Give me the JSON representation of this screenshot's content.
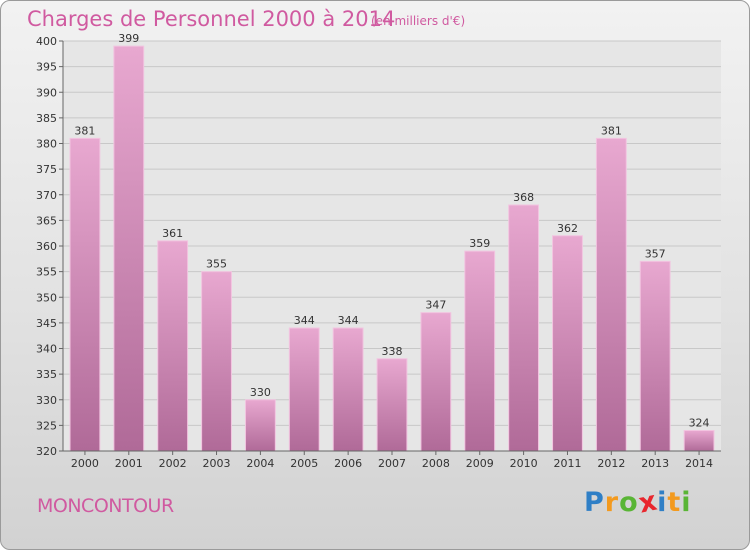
{
  "chart_data": {
    "type": "bar",
    "title": "Charges de Personnel 2000 à 2014",
    "subtitle": "(en milliers d'€)",
    "categories": [
      "2000",
      "2001",
      "2002",
      "2003",
      "2004",
      "2005",
      "2006",
      "2007",
      "2008",
      "2009",
      "2010",
      "2011",
      "2012",
      "2013",
      "2014"
    ],
    "values": [
      381,
      399,
      361,
      355,
      330,
      344,
      344,
      338,
      347,
      359,
      368,
      362,
      381,
      357,
      324
    ],
    "ylim": [
      320,
      400
    ],
    "yticks": [
      320,
      325,
      330,
      335,
      340,
      345,
      350,
      355,
      360,
      365,
      370,
      375,
      380,
      385,
      390,
      395,
      400
    ],
    "grid": true,
    "bar_color_top": "#e8a8d0",
    "bar_color_bottom": "#b06a98"
  },
  "footer": {
    "commune": "MONCONTOUR",
    "logo_letters": [
      {
        "ch": "P",
        "color": "#2f7fc6"
      },
      {
        "ch": "r",
        "color": "#f39a1e"
      },
      {
        "ch": "o",
        "color": "#59b535"
      },
      {
        "ch": "x",
        "color": "#e8262d"
      },
      {
        "ch": "i",
        "color": "#2f7fc6"
      },
      {
        "ch": "t",
        "color": "#f39a1e"
      },
      {
        "ch": "i",
        "color": "#59b535"
      }
    ]
  },
  "colors": {
    "accent": "#d05aa0"
  }
}
